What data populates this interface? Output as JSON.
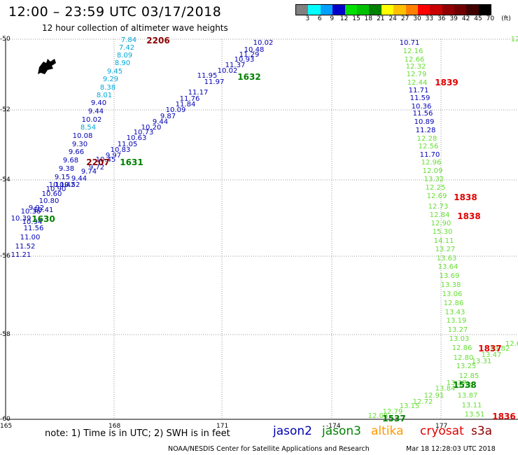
{
  "header": {
    "title": "12:00 – 23:59 UTC 03/17/2018",
    "subtitle": "12 hour collection of altimeter wave heights"
  },
  "legend": {
    "unit": "(ft)",
    "bins": [
      {
        "label": "3",
        "color": "#808080"
      },
      {
        "label": "6",
        "color": "#00ffff"
      },
      {
        "label": "9",
        "color": "#00a0ff"
      },
      {
        "label": "12",
        "color": "#0000c8"
      },
      {
        "label": "15",
        "color": "#00e000"
      },
      {
        "label": "18",
        "color": "#00c000"
      },
      {
        "label": "21",
        "color": "#008000"
      },
      {
        "label": "24",
        "color": "#ffff00"
      },
      {
        "label": "27",
        "color": "#ffc000"
      },
      {
        "label": "30",
        "color": "#ff8000"
      },
      {
        "label": "33",
        "color": "#ff0000"
      },
      {
        "label": "36",
        "color": "#c80000"
      },
      {
        "label": "39",
        "color": "#900000"
      },
      {
        "label": "42",
        "color": "#700000"
      },
      {
        "label": "45",
        "color": "#400000"
      },
      {
        "label": "70",
        "color": "#000000"
      }
    ]
  },
  "axes": {
    "lat_ticks": [
      "-50",
      "-52",
      "-54",
      "-56",
      "-58",
      "-60"
    ],
    "lon_ticks": [
      "165",
      "168",
      "171",
      "-174",
      "177"
    ]
  },
  "colors": {
    "blue": "#0000b4",
    "cyan": "#00a8d8",
    "lightgreen": "#66dd33",
    "darkgreen": "#008000",
    "darkred": "#8b0000",
    "red": "#e00000",
    "orange": "#ff9900",
    "black": "#000000",
    "gridline": "#999999"
  },
  "observations": [
    {
      "t": "7.84",
      "c": "cyan"
    },
    {
      "t": "7.42",
      "c": "cyan"
    },
    {
      "t": "8.09",
      "c": "cyan"
    },
    {
      "t": "8.90",
      "c": "cyan"
    },
    {
      "t": "9.45",
      "c": "cyan"
    },
    {
      "t": "9.29",
      "c": "cyan"
    },
    {
      "t": "8.38",
      "c": "cyan"
    },
    {
      "t": "8.01",
      "c": "cyan"
    },
    {
      "t": "9.40",
      "c": "blue"
    },
    {
      "t": "9.44",
      "c": "blue"
    },
    {
      "t": "10.02",
      "c": "blue"
    },
    {
      "t": "8.54",
      "c": "cyan"
    },
    {
      "t": "10.08",
      "c": "blue"
    },
    {
      "t": "9.30",
      "c": "blue"
    },
    {
      "t": "9.66",
      "c": "blue"
    },
    {
      "t": "9.68",
      "c": "blue"
    },
    {
      "t": "9.38",
      "c": "blue"
    },
    {
      "t": "9.15",
      "c": "blue"
    },
    {
      "t": "10.19",
      "c": "blue"
    },
    {
      "t": "10.42",
      "c": "blue"
    },
    {
      "t": "10.60",
      "c": "blue"
    },
    {
      "t": "10.90",
      "c": "blue"
    },
    {
      "t": "10.80",
      "c": "blue"
    },
    {
      "t": "9.92",
      "c": "blue"
    },
    {
      "t": "10.41",
      "c": "blue"
    },
    {
      "t": "10.36",
      "c": "blue"
    },
    {
      "t": "10.39",
      "c": "blue"
    },
    {
      "t": "10.94",
      "c": "blue"
    },
    {
      "t": "11.56",
      "c": "blue"
    },
    {
      "t": "11.00",
      "c": "blue"
    },
    {
      "t": "11.52",
      "c": "blue"
    },
    {
      "t": "11.21",
      "c": "blue"
    },
    {
      "t": "10.02",
      "c": "blue"
    },
    {
      "t": "10.48",
      "c": "blue"
    },
    {
      "t": "11.29",
      "c": "blue"
    },
    {
      "t": "10.93",
      "c": "blue"
    },
    {
      "t": "11.37",
      "c": "blue"
    },
    {
      "t": "10.02",
      "c": "blue"
    },
    {
      "t": "11.97",
      "c": "blue"
    },
    {
      "t": "11.95",
      "c": "blue"
    },
    {
      "t": "11.17",
      "c": "blue"
    },
    {
      "t": "11.76",
      "c": "blue"
    },
    {
      "t": "11.84",
      "c": "blue"
    },
    {
      "t": "10.09",
      "c": "blue"
    },
    {
      "t": "9.87",
      "c": "blue"
    },
    {
      "t": "9.44",
      "c": "blue"
    },
    {
      "t": "10.20",
      "c": "blue"
    },
    {
      "t": "10.73",
      "c": "blue"
    },
    {
      "t": "10.63",
      "c": "blue"
    },
    {
      "t": "11.05",
      "c": "blue"
    },
    {
      "t": "10.83",
      "c": "blue"
    },
    {
      "t": "9.97",
      "c": "blue"
    },
    {
      "t": "10.45",
      "c": "blue"
    },
    {
      "t": "9.72",
      "c": "blue"
    },
    {
      "t": "9.74",
      "c": "blue"
    },
    {
      "t": "9.44",
      "c": "blue"
    },
    {
      "t": "10.52",
      "c": "blue"
    },
    {
      "t": "10.71",
      "c": "blue"
    },
    {
      "t": "12.16",
      "c": "lightgreen"
    },
    {
      "t": "12.66",
      "c": "lightgreen"
    },
    {
      "t": "12.32",
      "c": "lightgreen"
    },
    {
      "t": "12.79",
      "c": "lightgreen"
    },
    {
      "t": "12.44",
      "c": "lightgreen"
    },
    {
      "t": "11.71",
      "c": "blue"
    },
    {
      "t": "11.59",
      "c": "blue"
    },
    {
      "t": "10.36",
      "c": "blue"
    },
    {
      "t": "11.56",
      "c": "blue"
    },
    {
      "t": "10.89",
      "c": "blue"
    },
    {
      "t": "11.28",
      "c": "blue"
    },
    {
      "t": "12.28",
      "c": "lightgreen"
    },
    {
      "t": "12.56",
      "c": "lightgreen"
    },
    {
      "t": "11.70",
      "c": "blue"
    },
    {
      "t": "12.96",
      "c": "lightgreen"
    },
    {
      "t": "12.09",
      "c": "lightgreen"
    },
    {
      "t": "13.32",
      "c": "lightgreen"
    },
    {
      "t": "12.25",
      "c": "lightgreen"
    },
    {
      "t": "12.69",
      "c": "lightgreen"
    },
    {
      "t": "12.73",
      "c": "lightgreen"
    },
    {
      "t": "12.84",
      "c": "lightgreen"
    },
    {
      "t": "12.90",
      "c": "lightgreen"
    },
    {
      "t": "15.30",
      "c": "lightgreen"
    },
    {
      "t": "14.11",
      "c": "lightgreen"
    },
    {
      "t": "13.27",
      "c": "lightgreen"
    },
    {
      "t": "13.63",
      "c": "lightgreen"
    },
    {
      "t": "13.64",
      "c": "lightgreen"
    },
    {
      "t": "13.69",
      "c": "lightgreen"
    },
    {
      "t": "13.38",
      "c": "lightgreen"
    },
    {
      "t": "13.06",
      "c": "lightgreen"
    },
    {
      "t": "12.86",
      "c": "lightgreen"
    },
    {
      "t": "13.43",
      "c": "lightgreen"
    },
    {
      "t": "13.19",
      "c": "lightgreen"
    },
    {
      "t": "13.27",
      "c": "lightgreen"
    },
    {
      "t": "13.03",
      "c": "lightgreen"
    },
    {
      "t": "12.86",
      "c": "lightgreen"
    },
    {
      "t": "12.80",
      "c": "lightgreen"
    },
    {
      "t": "13.47",
      "c": "lightgreen"
    },
    {
      "t": "13.82",
      "c": "lightgreen"
    },
    {
      "t": "13.31",
      "c": "lightgreen"
    },
    {
      "t": "13.25",
      "c": "lightgreen"
    },
    {
      "t": "12.85",
      "c": "lightgreen"
    },
    {
      "t": "13.18",
      "c": "lightgreen"
    },
    {
      "t": "13.37",
      "c": "lightgreen"
    },
    {
      "t": "13.84",
      "c": "lightgreen"
    },
    {
      "t": "12.91",
      "c": "lightgreen"
    },
    {
      "t": "12.72",
      "c": "lightgreen"
    },
    {
      "t": "13.15",
      "c": "lightgreen"
    },
    {
      "t": "12.79",
      "c": "lightgreen"
    },
    {
      "t": "12.08",
      "c": "lightgreen"
    },
    {
      "t": "13.87",
      "c": "lightgreen"
    },
    {
      "t": "13.11",
      "c": "lightgreen"
    },
    {
      "t": "13.51",
      "c": "lightgreen"
    },
    {
      "t": "12",
      "c": "lightgreen"
    },
    {
      "t": "12.6",
      "c": "lightgreen"
    }
  ],
  "time_labels": [
    {
      "t": "2206",
      "c": "darkred"
    },
    {
      "t": "1632",
      "c": "darkgreen"
    },
    {
      "t": "2207",
      "c": "darkred"
    },
    {
      "t": "1631",
      "c": "darkgreen"
    },
    {
      "t": "1630",
      "c": "darkgreen"
    },
    {
      "t": "1839",
      "c": "red"
    },
    {
      "t": "1838",
      "c": "red"
    },
    {
      "t": "1838",
      "c": "red"
    },
    {
      "t": "1837",
      "c": "red"
    },
    {
      "t": "1538",
      "c": "darkgreen"
    },
    {
      "t": "1537",
      "c": "darkgreen"
    },
    {
      "t": "1836",
      "c": "red"
    }
  ],
  "footer": {
    "note": "note:  1) Time is in UTC;  2) SWH is in feet",
    "missions": [
      {
        "name": "jason2",
        "c": "blue"
      },
      {
        "name": "jason3",
        "c": "darkgreen"
      },
      {
        "name": "altika",
        "c": "orange"
      },
      {
        "name": "cryosat",
        "c": "red"
      },
      {
        "name": "s3a",
        "c": "darkred"
      }
    ],
    "credit": "NOAA/NESDIS Center for Satellite Applications and Research",
    "timestamp": "Mar 18 12:28:03 UTC 2018"
  }
}
